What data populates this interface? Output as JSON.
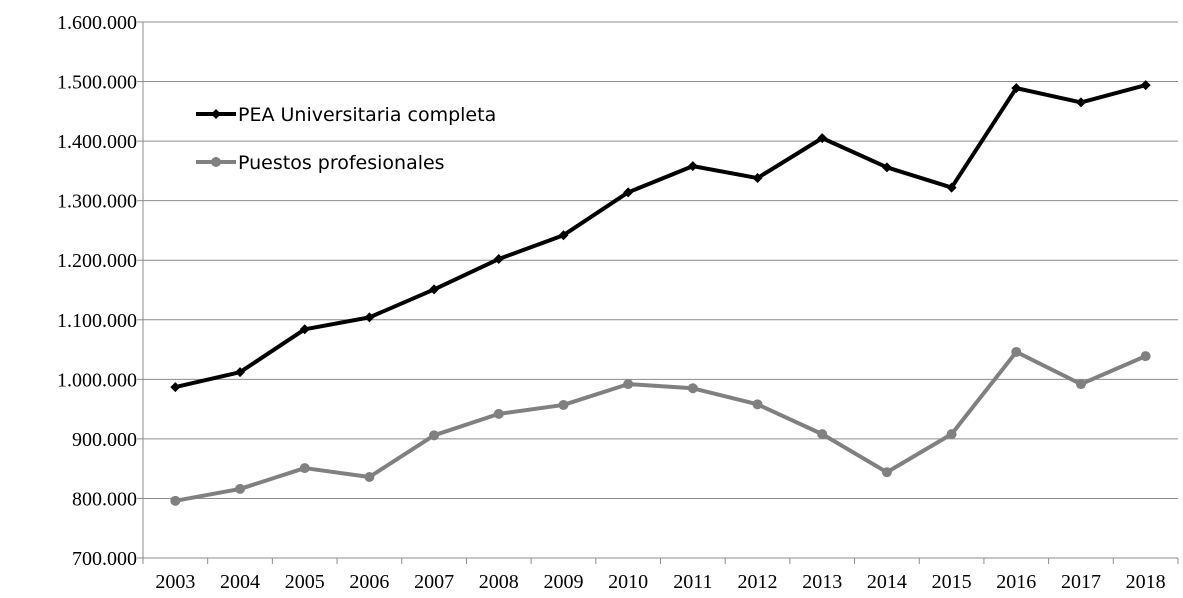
{
  "chart_data": {
    "type": "line",
    "categories": [
      "2003",
      "2004",
      "2005",
      "2006",
      "2007",
      "2008",
      "2009",
      "2010",
      "2011",
      "2012",
      "2013",
      "2014",
      "2015",
      "2016",
      "2017",
      "2018"
    ],
    "series": [
      {
        "name": "PEA Universitaria completa",
        "color": "#000000",
        "marker": "diamond",
        "values": [
          987000,
          1012000,
          1084000,
          1104000,
          1151000,
          1202000,
          1242000,
          1314000,
          1358000,
          1338000,
          1405000,
          1356000,
          1322000,
          1489000,
          1465000,
          1494000
        ]
      },
      {
        "name": "Puestos profesionales",
        "color": "#808080",
        "marker": "circle",
        "values": [
          796000,
          816000,
          851000,
          836000,
          906000,
          942000,
          957000,
          992000,
          985000,
          958000,
          908000,
          844000,
          908000,
          1046000,
          992000,
          1039000
        ]
      }
    ],
    "ylim": [
      700000,
      1600000
    ],
    "yticks": [
      {
        "value": 700000,
        "label": "700.000"
      },
      {
        "value": 800000,
        "label": "800.000"
      },
      {
        "value": 900000,
        "label": "900.000"
      },
      {
        "value": 1000000,
        "label": "1.000.000"
      },
      {
        "value": 1100000,
        "label": "1.100.000"
      },
      {
        "value": 1200000,
        "label": "1.200.000"
      },
      {
        "value": 1300000,
        "label": "1.300.000"
      },
      {
        "value": 1400000,
        "label": "1.400.000"
      },
      {
        "value": 1500000,
        "label": "1.500.000"
      },
      {
        "value": 1600000,
        "label": "1.600.000"
      }
    ],
    "grid": true,
    "legend": "upper left"
  }
}
